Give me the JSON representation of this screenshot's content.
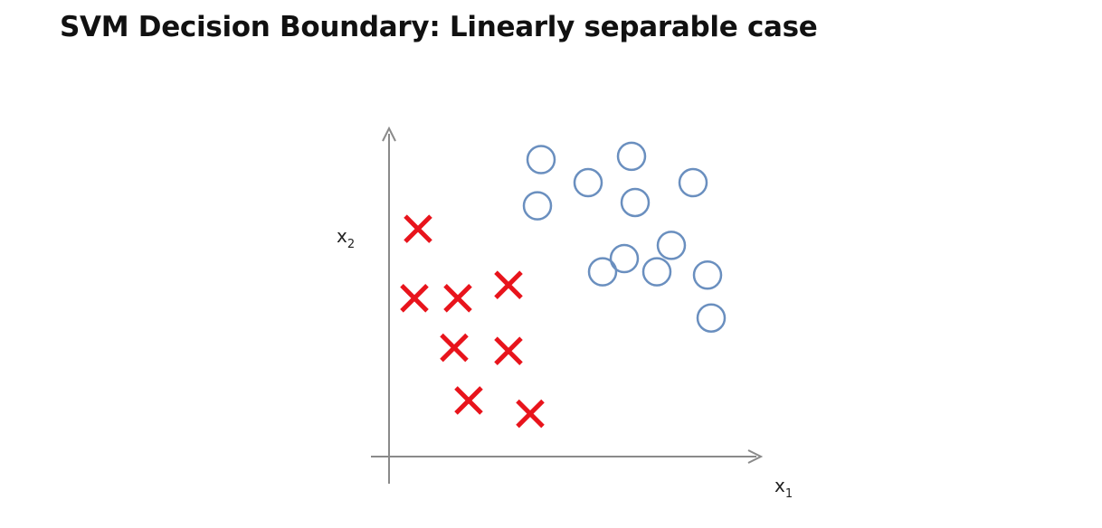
{
  "chart_data": {
    "type": "scatter",
    "title": "SVM Decision Boundary: Linearly separable case",
    "xlabel": {
      "base": "x",
      "sub": "1"
    },
    "ylabel": {
      "base": "x",
      "sub": "2"
    },
    "grid": false,
    "legend": "none",
    "xlim": [
      0,
      10
    ],
    "ylim": [
      0,
      10
    ],
    "series": [
      {
        "marker": "x",
        "color": "#e8141c",
        "points": [
          [
            0.8,
            6.9
          ],
          [
            0.7,
            4.8
          ],
          [
            1.9,
            4.8
          ],
          [
            3.3,
            5.2
          ],
          [
            1.8,
            3.3
          ],
          [
            3.3,
            3.2
          ],
          [
            2.2,
            1.7
          ],
          [
            3.9,
            1.3
          ]
        ]
      },
      {
        "marker": "circle",
        "color": "#6a8fbf",
        "points": [
          [
            4.2,
            9.0
          ],
          [
            6.7,
            9.1
          ],
          [
            5.5,
            8.3
          ],
          [
            8.4,
            8.3
          ],
          [
            4.1,
            7.6
          ],
          [
            6.8,
            7.7
          ],
          [
            7.8,
            6.4
          ],
          [
            6.5,
            6.0
          ],
          [
            5.9,
            5.6
          ],
          [
            7.4,
            5.6
          ],
          [
            8.8,
            5.5
          ],
          [
            8.9,
            4.2
          ]
        ]
      }
    ]
  }
}
